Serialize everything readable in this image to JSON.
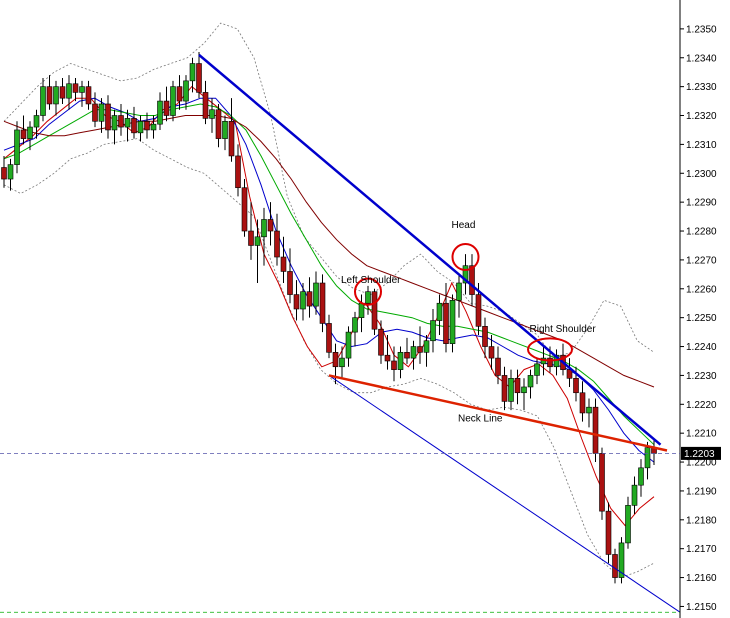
{
  "chart_data": {
    "type": "candlestick",
    "instrument_axis": "price",
    "ylim": [
      1.2146,
      1.236
    ],
    "y_ticks": [
      "1.2350",
      "1.2340",
      "1.2330",
      "1.2320",
      "1.2310",
      "1.2300",
      "1.2290",
      "1.2280",
      "1.2270",
      "1.2260",
      "1.2250",
      "1.2240",
      "1.2230",
      "1.2220",
      "1.2210",
      "1.2200",
      "1.2190",
      "1.2180",
      "1.2170",
      "1.2160",
      "1.2150"
    ],
    "current_price_label": "1.2203",
    "current_price": 1.2203,
    "reference_level": 1.2148,
    "candles": [
      [
        1.2302,
        1.2306,
        1.2295,
        1.2298
      ],
      [
        1.2298,
        1.2305,
        1.2294,
        1.2303
      ],
      [
        1.2303,
        1.2318,
        1.23,
        1.2315
      ],
      [
        1.2315,
        1.232,
        1.231,
        1.2312
      ],
      [
        1.2312,
        1.2318,
        1.2308,
        1.2316
      ],
      [
        1.2316,
        1.2322,
        1.2312,
        1.232
      ],
      [
        1.232,
        1.2333,
        1.2318,
        1.233
      ],
      [
        1.233,
        1.2334,
        1.2322,
        1.2324
      ],
      [
        1.2324,
        1.2332,
        1.232,
        1.233
      ],
      [
        1.233,
        1.2333,
        1.2324,
        1.2326
      ],
      [
        1.2326,
        1.2334,
        1.2322,
        1.2331
      ],
      [
        1.2331,
        1.2333,
        1.2325,
        1.2328
      ],
      [
        1.2328,
        1.2332,
        1.2323,
        1.233
      ],
      [
        1.233,
        1.2332,
        1.2322,
        1.2324
      ],
      [
        1.2324,
        1.2328,
        1.2316,
        1.2318
      ],
      [
        1.2318,
        1.2326,
        1.2314,
        1.2324
      ],
      [
        1.2324,
        1.2327,
        1.2312,
        1.2315
      ],
      [
        1.2315,
        1.2322,
        1.231,
        1.232
      ],
      [
        1.232,
        1.2324,
        1.2313,
        1.2316
      ],
      [
        1.2316,
        1.2322,
        1.2311,
        1.2319
      ],
      [
        1.2319,
        1.2323,
        1.2312,
        1.2314
      ],
      [
        1.2314,
        1.232,
        1.2311,
        1.2318
      ],
      [
        1.2318,
        1.2321,
        1.2312,
        1.2315
      ],
      [
        1.2315,
        1.232,
        1.2312,
        1.2317
      ],
      [
        1.2317,
        1.2328,
        1.2315,
        1.2325
      ],
      [
        1.2325,
        1.233,
        1.2318,
        1.232
      ],
      [
        1.232,
        1.2332,
        1.2318,
        1.233
      ],
      [
        1.233,
        1.2334,
        1.2322,
        1.2325
      ],
      [
        1.2325,
        1.2334,
        1.2322,
        1.2332
      ],
      [
        1.2332,
        1.234,
        1.2328,
        1.2338
      ],
      [
        1.2338,
        1.2342,
        1.2326,
        1.2328
      ],
      [
        1.2328,
        1.2332,
        1.2317,
        1.2319
      ],
      [
        1.2319,
        1.2326,
        1.2314,
        1.2322
      ],
      [
        1.2322,
        1.2324,
        1.2309,
        1.2312
      ],
      [
        1.2312,
        1.232,
        1.2308,
        1.2318
      ],
      [
        1.2318,
        1.2326,
        1.2304,
        1.2306
      ],
      [
        1.2306,
        1.231,
        1.2292,
        1.2295
      ],
      [
        1.2295,
        1.2298,
        1.2278,
        1.228
      ],
      [
        1.228,
        1.229,
        1.227,
        1.2275
      ],
      [
        1.2275,
        1.2284,
        1.2262,
        1.2278
      ],
      [
        1.2278,
        1.2288,
        1.2268,
        1.2284
      ],
      [
        1.2284,
        1.229,
        1.2275,
        1.228
      ],
      [
        1.228,
        1.2286,
        1.2268,
        1.2271
      ],
      [
        1.2271,
        1.2278,
        1.2262,
        1.2266
      ],
      [
        1.2266,
        1.2274,
        1.2255,
        1.2258
      ],
      [
        1.2258,
        1.2263,
        1.2249,
        1.2253
      ],
      [
        1.2253,
        1.2262,
        1.2249,
        1.2259
      ],
      [
        1.2259,
        1.2264,
        1.225,
        1.2254
      ],
      [
        1.2254,
        1.2266,
        1.2251,
        1.2262
      ],
      [
        1.2262,
        1.2265,
        1.2245,
        1.2248
      ],
      [
        1.2248,
        1.2251,
        1.2236,
        1.2238
      ],
      [
        1.2238,
        1.2241,
        1.2227,
        1.2233
      ],
      [
        1.2233,
        1.224,
        1.2229,
        1.2236
      ],
      [
        1.2236,
        1.2247,
        1.2233,
        1.2245
      ],
      [
        1.2245,
        1.2252,
        1.224,
        1.225
      ],
      [
        1.225,
        1.2258,
        1.2245,
        1.2255
      ],
      [
        1.2255,
        1.2261,
        1.2251,
        1.2259
      ],
      [
        1.2259,
        1.226,
        1.2244,
        1.2246
      ],
      [
        1.2246,
        1.2249,
        1.2234,
        1.2237
      ],
      [
        1.2237,
        1.2244,
        1.2232,
        1.2235
      ],
      [
        1.2235,
        1.224,
        1.2228,
        1.2232
      ],
      [
        1.2232,
        1.224,
        1.2229,
        1.2238
      ],
      [
        1.2238,
        1.2243,
        1.2234,
        1.2236
      ],
      [
        1.2236,
        1.2242,
        1.2232,
        1.224
      ],
      [
        1.224,
        1.2247,
        1.2234,
        1.2238
      ],
      [
        1.2238,
        1.2244,
        1.2233,
        1.2242
      ],
      [
        1.2242,
        1.2253,
        1.2238,
        1.2249
      ],
      [
        1.2249,
        1.2258,
        1.2244,
        1.2255
      ],
      [
        1.2255,
        1.2262,
        1.2238,
        1.2241
      ],
      [
        1.2241,
        1.2258,
        1.2238,
        1.2256
      ],
      [
        1.2256,
        1.2265,
        1.225,
        1.2262
      ],
      [
        1.2262,
        1.2272,
        1.2258,
        1.2268
      ],
      [
        1.2268,
        1.2272,
        1.2254,
        1.2258
      ],
      [
        1.2258,
        1.2262,
        1.2244,
        1.2247
      ],
      [
        1.2247,
        1.225,
        1.2236,
        1.224
      ],
      [
        1.224,
        1.2244,
        1.2232,
        1.2236
      ],
      [
        1.2236,
        1.224,
        1.2227,
        1.223
      ],
      [
        1.223,
        1.2233,
        1.2218,
        1.2221
      ],
      [
        1.2221,
        1.2232,
        1.2218,
        1.2229
      ],
      [
        1.2229,
        1.2232,
        1.222,
        1.2224
      ],
      [
        1.2224,
        1.2229,
        1.2218,
        1.2226
      ],
      [
        1.2226,
        1.2232,
        1.2222,
        1.223
      ],
      [
        1.223,
        1.2236,
        1.2227,
        1.2234
      ],
      [
        1.2234,
        1.224,
        1.223,
        1.2236
      ],
      [
        1.2236,
        1.224,
        1.2231,
        1.2233
      ],
      [
        1.2233,
        1.2239,
        1.223,
        1.2237
      ],
      [
        1.2237,
        1.2241,
        1.223,
        1.2232
      ],
      [
        1.2232,
        1.2236,
        1.2226,
        1.2229
      ],
      [
        1.2229,
        1.2233,
        1.2221,
        1.2224
      ],
      [
        1.2224,
        1.2228,
        1.2214,
        1.2217
      ],
      [
        1.2217,
        1.2222,
        1.2212,
        1.2219
      ],
      [
        1.2219,
        1.2222,
        1.22,
        1.2203
      ],
      [
        1.2203,
        1.2205,
        1.218,
        1.2183
      ],
      [
        1.2183,
        1.2186,
        1.2165,
        1.2168
      ],
      [
        1.2168,
        1.217,
        1.2158,
        1.216
      ],
      [
        1.216,
        1.2174,
        1.2158,
        1.2172
      ],
      [
        1.2172,
        1.2188,
        1.217,
        1.2185
      ],
      [
        1.2185,
        1.2195,
        1.2182,
        1.2192
      ],
      [
        1.2192,
        1.2201,
        1.2188,
        1.2198
      ],
      [
        1.2198,
        1.2207,
        1.2194,
        1.2205
      ],
      [
        1.2205,
        1.2208,
        1.2199,
        1.2203
      ]
    ],
    "moving_averages": [
      {
        "color": "#cc0000",
        "values": [
          1.2305,
          1.2309,
          1.2313,
          1.2318,
          1.2322,
          1.2326,
          1.2326,
          1.232,
          1.2318,
          1.2314,
          1.2316,
          1.2322,
          1.2324,
          1.233,
          1.2326,
          1.2322,
          1.2318,
          1.2292,
          1.2272,
          1.2262,
          1.225,
          1.224,
          1.2233,
          1.2235,
          1.2244,
          1.2255,
          1.2248,
          1.2237,
          1.2233,
          1.224,
          1.225,
          1.2262,
          1.2252,
          1.224,
          1.223,
          1.2226,
          1.2232,
          1.2234,
          1.223,
          1.2222,
          1.2208,
          1.2195,
          1.2184,
          1.2178,
          1.2184,
          1.2188
        ]
      },
      {
        "color": "#0000cc",
        "values": [
          1.2308,
          1.231,
          1.2312,
          1.2317,
          1.2321,
          1.2325,
          1.2326,
          1.2323,
          1.2321,
          1.2318,
          1.2319,
          1.2323,
          1.2324,
          1.2326,
          1.2326,
          1.232,
          1.231,
          1.2296,
          1.228,
          1.2268,
          1.2258,
          1.225,
          1.2242,
          1.224,
          1.2241,
          1.2245,
          1.2246,
          1.2245,
          1.2243,
          1.2242,
          1.2243,
          1.2244,
          1.2243,
          1.224,
          1.2237,
          1.2235,
          1.2234,
          1.2233,
          1.223,
          1.2225,
          1.2218,
          1.221,
          1.2204,
          1.22
        ]
      },
      {
        "color": "#00aa00",
        "values": [
          1.2305,
          1.2307,
          1.231,
          1.2313,
          1.2316,
          1.2319,
          1.2322,
          1.2322,
          1.2321,
          1.232,
          1.232,
          1.2322,
          1.2323,
          1.2324,
          1.2323,
          1.232,
          1.2315,
          1.2306,
          1.2296,
          1.2286,
          1.2277,
          1.2268,
          1.2261,
          1.2256,
          1.2253,
          1.2252,
          1.2251,
          1.225,
          1.2248,
          1.2247,
          1.2247,
          1.2246,
          1.2245,
          1.2243,
          1.2241,
          1.2239,
          1.2237,
          1.2235,
          1.2232,
          1.2228,
          1.2222,
          1.2216,
          1.2211,
          1.2206
        ]
      },
      {
        "color": "#800000",
        "values": [
          1.2318,
          1.2316,
          1.2314,
          1.2313,
          1.2313,
          1.2314,
          1.2315,
          1.2316,
          1.2317,
          1.2318,
          1.2318,
          1.2319,
          1.232,
          1.232,
          1.232,
          1.2319,
          1.2316,
          1.2311,
          1.2305,
          1.2298,
          1.229,
          1.2283,
          1.2277,
          1.2272,
          1.2268,
          1.2266,
          1.2264,
          1.2262,
          1.226,
          1.2258,
          1.2256,
          1.2254,
          1.2252,
          1.225,
          1.2248,
          1.2246,
          1.2244,
          1.2242,
          1.2239,
          1.2236,
          1.2233,
          1.223,
          1.2228,
          1.2226
        ]
      }
    ],
    "bollinger_upper": [
      1.2318,
      1.2324,
      1.233,
      1.2335,
      1.2338,
      1.2336,
      1.2334,
      1.2332,
      1.2333,
      1.2336,
      1.2338,
      1.234,
      1.2345,
      1.2352,
      1.235,
      1.234,
      1.232,
      1.2292,
      1.2278,
      1.2271,
      1.2264,
      1.226,
      1.2258,
      1.2262,
      1.2268,
      1.2272,
      1.2266,
      1.2262,
      1.2255,
      1.2254,
      1.2252,
      1.2248,
      1.2244,
      1.2236,
      1.2238,
      1.2246,
      1.2256,
      1.2254,
      1.2242,
      1.2238
    ],
    "bollinger_lower": [
      1.2296,
      1.2293,
      1.2296,
      1.23,
      1.2305,
      1.2307,
      1.231,
      1.2311,
      1.2312,
      1.2308,
      1.2305,
      1.2302,
      1.23,
      1.2295,
      1.229,
      1.2285,
      1.227,
      1.2255,
      1.2242,
      1.2232,
      1.2227,
      1.2224,
      1.2224,
      1.2226,
      1.2227,
      1.2229,
      1.2227,
      1.2224,
      1.222,
      1.2218,
      1.2219,
      1.2218,
      1.2216,
      1.2205,
      1.219,
      1.2175,
      1.2165,
      1.216,
      1.2162,
      1.2165
    ],
    "trendlines": [
      {
        "color": "#0000cc",
        "points": [
          [
            30,
            1.2341
          ],
          [
            101,
            1.2206
          ]
        ]
      },
      {
        "color": "#0000cc",
        "points": [
          [
            50,
            1.223
          ],
          [
            104,
            1.2148
          ]
        ]
      },
      {
        "color": "#dd2200",
        "points": [
          [
            50,
            1.223
          ],
          [
            102,
            1.2204
          ]
        ]
      }
    ],
    "annotations": [
      {
        "text": "Head",
        "x": 71,
        "y": 1.2281
      },
      {
        "text": "Left Shoulder",
        "x": 54,
        "y": 1.2262
      },
      {
        "text": "Right Shoulder",
        "x": 83,
        "y": 1.2245
      },
      {
        "text": "Neck Line",
        "x": 72,
        "y": 1.2214
      }
    ],
    "circles": [
      {
        "x": 71,
        "y": 1.2271
      },
      {
        "x": 56,
        "y": 1.2259
      },
      {
        "x": 84,
        "y": 1.2239
      }
    ]
  }
}
